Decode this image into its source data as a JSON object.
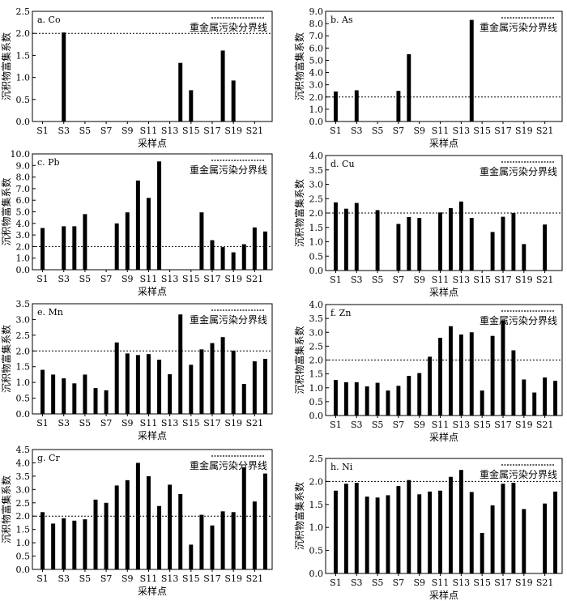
{
  "shared": {
    "xlabel": "采样点",
    "ylabel": "沉积物富集系数",
    "boundary_label": "重金属污染分界线",
    "x_tick_labels": [
      "S1",
      "S3",
      "S5",
      "S7",
      "S9",
      "S11",
      "S13",
      "S15",
      "S17",
      "S19",
      "S21"
    ],
    "sites": [
      "S1",
      "S2",
      "S3",
      "S4",
      "S5",
      "S6",
      "S7",
      "S8",
      "S9",
      "S10",
      "S11",
      "S12",
      "S13",
      "S14",
      "S15",
      "S16",
      "S17",
      "S18",
      "S19",
      "S20",
      "S21",
      "S22"
    ],
    "threshold": 2.0,
    "bar_color": "#000000"
  },
  "chart_data": [
    {
      "type": "bar",
      "title": "a. Co",
      "categories": [
        "S1",
        "S2",
        "S3",
        "S4",
        "S5",
        "S6",
        "S7",
        "S8",
        "S9",
        "S10",
        "S11",
        "S12",
        "S13",
        "S14",
        "S15",
        "S16",
        "S17",
        "S18",
        "S19",
        "S20",
        "S21",
        "S22"
      ],
      "values": [
        null,
        null,
        2.02,
        null,
        null,
        null,
        null,
        null,
        null,
        null,
        null,
        null,
        null,
        1.33,
        0.71,
        null,
        null,
        1.61,
        0.93,
        null,
        null,
        null
      ],
      "ylim": [
        0,
        2.5
      ],
      "yticks": [
        "0.0",
        "0.5",
        "1.0",
        "1.5",
        "2.0",
        "2.5"
      ],
      "xlabel": "采样点",
      "ylabel": "沉积物富集系数",
      "threshold": 2.0
    },
    {
      "type": "bar",
      "title": "b. As",
      "categories": [
        "S1",
        "S2",
        "S3",
        "S4",
        "S5",
        "S6",
        "S7",
        "S8",
        "S9",
        "S10",
        "S11",
        "S12",
        "S13",
        "S14",
        "S15",
        "S16",
        "S17",
        "S18",
        "S19",
        "S20",
        "S21",
        "S22"
      ],
      "values": [
        2.45,
        null,
        2.55,
        null,
        null,
        null,
        2.5,
        5.5,
        null,
        null,
        null,
        null,
        null,
        8.3,
        null,
        null,
        null,
        null,
        null,
        null,
        null,
        null
      ],
      "ylim": [
        0,
        9
      ],
      "yticks": [
        "0.0",
        "1.0",
        "2.0",
        "3.0",
        "4.0",
        "5.0",
        "6.0",
        "7.0",
        "8.0",
        "9.0"
      ],
      "xlabel": "采样点",
      "ylabel": "沉积物富集系数",
      "threshold": 2.0
    },
    {
      "type": "bar",
      "title": "c. Pb",
      "categories": [
        "S1",
        "S2",
        "S3",
        "S4",
        "S5",
        "S6",
        "S7",
        "S8",
        "S9",
        "S10",
        "S11",
        "S12",
        "S13",
        "S14",
        "S15",
        "S16",
        "S17",
        "S18",
        "S19",
        "S20",
        "S21",
        "S22"
      ],
      "values": [
        3.6,
        null,
        3.75,
        3.75,
        4.8,
        null,
        null,
        4.0,
        4.95,
        7.7,
        6.2,
        9.35,
        null,
        null,
        null,
        4.95,
        2.55,
        1.95,
        1.5,
        2.2,
        3.65,
        3.3
      ],
      "ylim": [
        0,
        10
      ],
      "yticks": [
        "0.0",
        "1.0",
        "2.0",
        "3.0",
        "4.0",
        "5.0",
        "6.0",
        "7.0",
        "8.0",
        "9.0",
        "10.0"
      ],
      "xlabel": "采样点",
      "ylabel": "沉积物富集系数",
      "threshold": 2.0
    },
    {
      "type": "bar",
      "title": "d. Cu",
      "categories": [
        "S1",
        "S2",
        "S3",
        "S4",
        "S5",
        "S6",
        "S7",
        "S8",
        "S9",
        "S10",
        "S11",
        "S12",
        "S13",
        "S14",
        "S15",
        "S16",
        "S17",
        "S18",
        "S19",
        "S20",
        "S21",
        "S22"
      ],
      "values": [
        2.37,
        2.15,
        2.35,
        null,
        2.1,
        null,
        1.62,
        1.86,
        1.83,
        null,
        2.02,
        2.17,
        2.4,
        1.83,
        null,
        1.34,
        1.87,
        2.0,
        0.92,
        null,
        1.6,
        null
      ],
      "ylim": [
        0,
        4
      ],
      "yticks": [
        "0.0",
        "0.5",
        "1.0",
        "1.5",
        "2.0",
        "2.5",
        "3.0",
        "3.5",
        "4.0"
      ],
      "xlabel": "采样点",
      "ylabel": "沉积物富集系数",
      "threshold": 2.0
    },
    {
      "type": "bar",
      "title": "e. Mn",
      "categories": [
        "S1",
        "S2",
        "S3",
        "S4",
        "S5",
        "S6",
        "S7",
        "S8",
        "S9",
        "S10",
        "S11",
        "S12",
        "S13",
        "S14",
        "S15",
        "S16",
        "S17",
        "S18",
        "S19",
        "S20",
        "S21",
        "S22"
      ],
      "values": [
        1.4,
        1.25,
        1.13,
        0.97,
        1.25,
        0.82,
        0.75,
        2.27,
        1.92,
        1.87,
        1.9,
        1.72,
        1.26,
        3.16,
        1.56,
        2.05,
        2.25,
        2.44,
        2.01,
        0.95,
        1.67,
        1.75
      ],
      "ylim": [
        0,
        3.5
      ],
      "yticks": [
        "0.0",
        "0.5",
        "1.0",
        "1.5",
        "2.0",
        "2.5",
        "3.0",
        "3.5"
      ],
      "xlabel": "采样点",
      "ylabel": "沉积物富集系数",
      "threshold": 2.0
    },
    {
      "type": "bar",
      "title": "f. Zn",
      "categories": [
        "S1",
        "S2",
        "S3",
        "S4",
        "S5",
        "S6",
        "S7",
        "S8",
        "S9",
        "S10",
        "S11",
        "S12",
        "S13",
        "S14",
        "S15",
        "S16",
        "S17",
        "S18",
        "S19",
        "S20",
        "S21",
        "S22"
      ],
      "values": [
        1.28,
        1.2,
        1.2,
        1.05,
        1.18,
        0.9,
        1.07,
        1.43,
        1.53,
        2.12,
        2.8,
        3.22,
        2.92,
        3.0,
        0.9,
        2.87,
        3.42,
        2.35,
        1.3,
        0.83,
        1.37,
        1.25
      ],
      "ylim": [
        0,
        4
      ],
      "yticks": [
        "0.0",
        "0.5",
        "1.0",
        "1.5",
        "2.0",
        "2.5",
        "3.0",
        "3.5",
        "4.0"
      ],
      "xlabel": "采样点",
      "ylabel": "沉积物富集系数",
      "threshold": 2.0
    },
    {
      "type": "bar",
      "title": "g. Cr",
      "categories": [
        "S1",
        "S2",
        "S3",
        "S4",
        "S5",
        "S6",
        "S7",
        "S8",
        "S9",
        "S10",
        "S11",
        "S12",
        "S13",
        "S14",
        "S15",
        "S16",
        "S17",
        "S18",
        "S19",
        "S20",
        "S21",
        "S22"
      ],
      "values": [
        2.15,
        1.72,
        1.92,
        1.83,
        1.88,
        2.62,
        2.5,
        3.15,
        3.35,
        4.0,
        3.5,
        2.38,
        3.18,
        2.83,
        0.93,
        2.05,
        1.65,
        2.18,
        2.15,
        3.83,
        2.55,
        3.6
      ],
      "ylim": [
        0,
        4.5
      ],
      "yticks": [
        "0.0",
        "0.5",
        "1.0",
        "1.5",
        "2.0",
        "2.5",
        "3.0",
        "3.5",
        "4.0",
        "4.5"
      ],
      "xlabel": "采样点",
      "ylabel": "沉积物富集系数",
      "threshold": 2.0
    },
    {
      "type": "bar",
      "title": "h. Ni",
      "categories": [
        "S1",
        "S2",
        "S3",
        "S4",
        "S5",
        "S6",
        "S7",
        "S8",
        "S9",
        "S10",
        "S11",
        "S12",
        "S13",
        "S14",
        "S15",
        "S16",
        "S17",
        "S18",
        "S19",
        "S20",
        "S21",
        "S22"
      ],
      "values": [
        1.8,
        1.95,
        1.97,
        1.67,
        1.65,
        1.7,
        1.9,
        2.03,
        1.72,
        1.78,
        1.8,
        2.1,
        2.25,
        1.77,
        0.88,
        1.48,
        1.95,
        1.97,
        1.4,
        null,
        1.52,
        1.78
      ],
      "ylim": [
        0,
        2.5
      ],
      "yticks": [
        "0.0",
        "0.5",
        "1.0",
        "1.5",
        "2.0",
        "2.5"
      ],
      "xlabel": "采样点",
      "ylabel": "沉积物富集系数",
      "threshold": 2.0
    }
  ]
}
